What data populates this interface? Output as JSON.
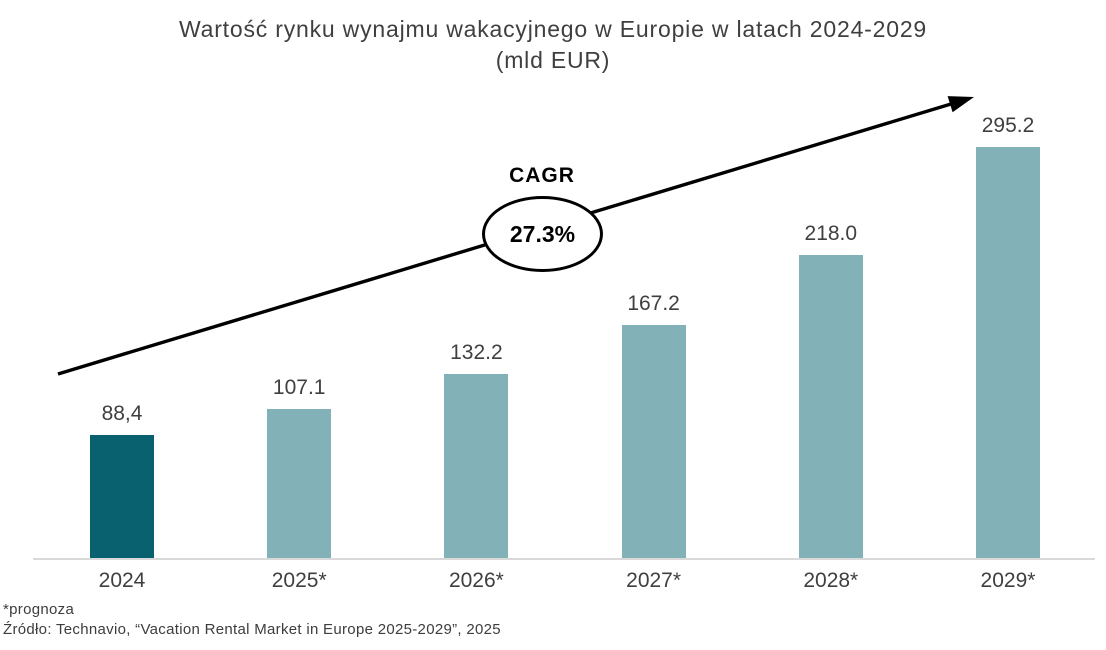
{
  "chart_data": {
    "type": "bar",
    "title": "Wartość rynku wynajmu wakacyjnego w Europie w latach 2024-2029",
    "subtitle": "(mld EUR)",
    "categories": [
      "2024",
      "2025*",
      "2026*",
      "2027*",
      "2028*",
      "2029*"
    ],
    "values": [
      88.4,
      107.1,
      132.2,
      167.2,
      218.0,
      295.2
    ],
    "value_labels": [
      "88,4",
      "107.1",
      "132.2",
      "167.2",
      "218.0",
      "295.2"
    ],
    "bar_colors": [
      "#09606e",
      "#83b1b8",
      "#83b1b8",
      "#83b1b8",
      "#83b1b8",
      "#83b1b8"
    ],
    "xlabel": "",
    "ylabel": "",
    "grid": false,
    "legend": false,
    "annotation": {
      "label": "CAGR",
      "value": "27.3%"
    },
    "footnote": "*prognoza",
    "source": "Źródło: Technavio, “Vacation Rental Market in Europe 2025-2029”, 2025"
  },
  "colors": {
    "bar_2024": "#09606e",
    "bar_forecast": "#83b1b8",
    "axis_line": "#d9d9d9",
    "text": "#3f3f3f",
    "arrow": "#000000"
  }
}
